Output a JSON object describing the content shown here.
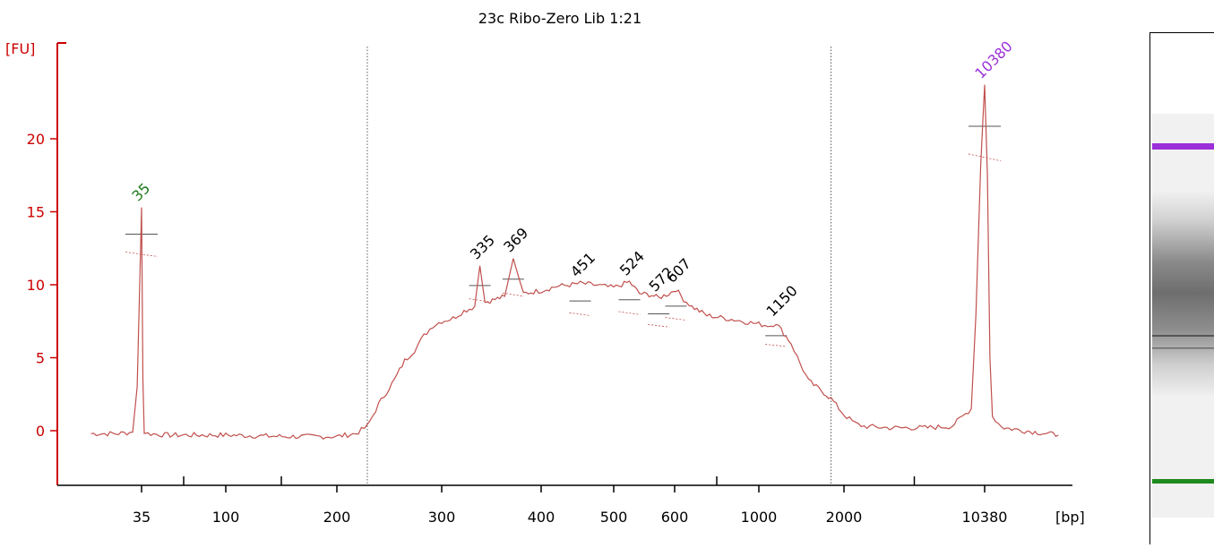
{
  "chart_data": {
    "type": "line",
    "title": "23c Ribo-Zero Lib 1:21",
    "ylabel": "[FU]",
    "xlabel": "[bp]",
    "ylim": [
      -3.5,
      26
    ],
    "yticks": [
      0,
      5,
      10,
      15,
      20
    ],
    "x_scale": "sizing ladder (non-linear bp axis)",
    "xtick_labels": [
      "35",
      "100",
      "200",
      "300",
      "400",
      "500",
      "600",
      "1000",
      "2000",
      "10380"
    ],
    "xtick_minor": [
      "35-100",
      "100-200",
      "600-1000",
      "2000-10380"
    ],
    "region_bounds_bp": [
      225,
      1800
    ],
    "series": [
      {
        "color": "#c0504d",
        "x_bp": [
          25,
          30,
          33,
          34,
          35,
          36,
          37,
          40,
          60,
          100,
          150,
          200,
          215,
          225,
          235,
          250,
          260,
          270,
          280,
          290,
          300,
          310,
          320,
          330,
          335,
          340,
          350,
          360,
          369,
          380,
          400,
          420,
          440,
          451,
          470,
          500,
          524,
          540,
          560,
          572,
          590,
          607,
          650,
          700,
          800,
          900,
          1000,
          1100,
          1150,
          1200,
          1300,
          1400,
          1500,
          1700,
          1800,
          2000,
          2500,
          3000,
          5000,
          7000,
          9000,
          9800,
          10000,
          10200,
          10380,
          10600,
          10800,
          11000,
          11500,
          12000,
          14000,
          18000
        ],
        "y_fu": [
          -0.2,
          -0.2,
          -0.1,
          3.0,
          15.3,
          3.5,
          -0.1,
          -0.2,
          -0.3,
          -0.3,
          -0.4,
          -0.4,
          -0.2,
          0.3,
          1.8,
          3.5,
          4.8,
          5.5,
          6.5,
          7.2,
          7.5,
          7.7,
          8.2,
          8.5,
          11.3,
          8.8,
          9.0,
          9.2,
          11.8,
          9.4,
          9.6,
          9.9,
          10.0,
          10.1,
          10.0,
          9.8,
          10.2,
          9.4,
          9.3,
          9.1,
          9.4,
          9.7,
          9.0,
          8.5,
          7.9,
          7.6,
          7.3,
          7.2,
          7.4,
          6.9,
          6.0,
          4.6,
          3.4,
          2.6,
          2.2,
          1.1,
          0.5,
          0.3,
          0.2,
          0.2,
          0.3,
          1.5,
          8.0,
          18.0,
          23.7,
          17.5,
          5.0,
          1.0,
          0.5,
          0.2,
          0.0,
          -0.3
        ]
      }
    ],
    "peaks": [
      {
        "label": "35",
        "x_bp": 35,
        "y_fu": 15.3,
        "color": "#1e7a1e"
      },
      {
        "label": "335",
        "x_bp": 335,
        "y_fu": 11.3,
        "color": "#000000"
      },
      {
        "label": "369",
        "x_bp": 369,
        "y_fu": 11.8,
        "color": "#000000"
      },
      {
        "label": "451",
        "x_bp": 451,
        "y_fu": 10.1,
        "color": "#000000"
      },
      {
        "label": "524",
        "x_bp": 524,
        "y_fu": 10.2,
        "color": "#000000"
      },
      {
        "label": "572",
        "x_bp": 572,
        "y_fu": 9.1,
        "color": "#000000"
      },
      {
        "label": "607",
        "x_bp": 607,
        "y_fu": 9.7,
        "color": "#000000"
      },
      {
        "label": "1150",
        "x_bp": 1150,
        "y_fu": 7.4,
        "color": "#000000"
      },
      {
        "label": "10380",
        "x_bp": 10380,
        "y_fu": 23.7,
        "color": "#9b30d9"
      }
    ],
    "colors": {
      "axis": "#cc0000",
      "trace": "#c0504d",
      "lower_marker": "#1e7a1e",
      "upper_marker": "#9b30d9"
    }
  },
  "gel": {
    "upper_marker_color": "#9b30d9",
    "lower_marker_color": "#1e8a1e",
    "smear_color": "#505050"
  }
}
